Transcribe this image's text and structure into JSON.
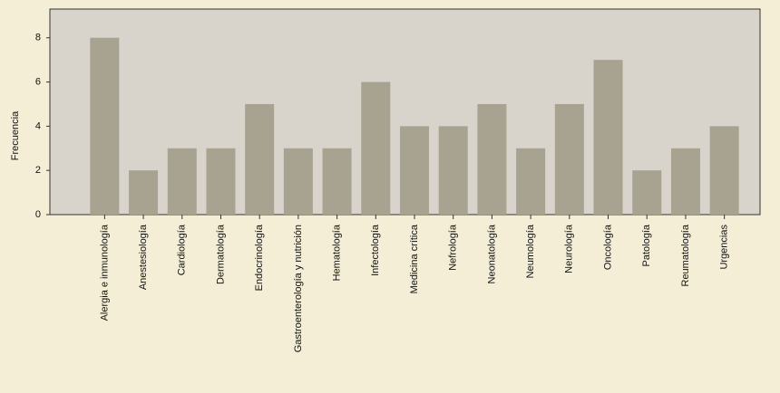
{
  "chart_data": {
    "type": "bar",
    "y_label": "Frecuencia",
    "categories": [
      "Alergia e inmunología",
      "Anestesiología",
      "Cardiología",
      "Dermatología",
      "Endocrinología",
      "Gastroenterología y nutrición",
      "Hematología",
      "Infectología",
      "Medicina crítica",
      "Nefrología",
      "Neonatología",
      "Neumología",
      "Neurología",
      "Oncología",
      "Patología",
      "Reumatología",
      "Urgencias"
    ],
    "values": [
      8,
      2,
      3,
      3,
      5,
      3,
      3,
      6,
      4,
      4,
      5,
      3,
      5,
      7,
      2,
      3,
      4
    ],
    "color": "#a8a290",
    "ylim": [
      0,
      9.3
    ],
    "yticks": [
      0,
      2,
      4,
      6,
      8
    ],
    "grid": false
  }
}
